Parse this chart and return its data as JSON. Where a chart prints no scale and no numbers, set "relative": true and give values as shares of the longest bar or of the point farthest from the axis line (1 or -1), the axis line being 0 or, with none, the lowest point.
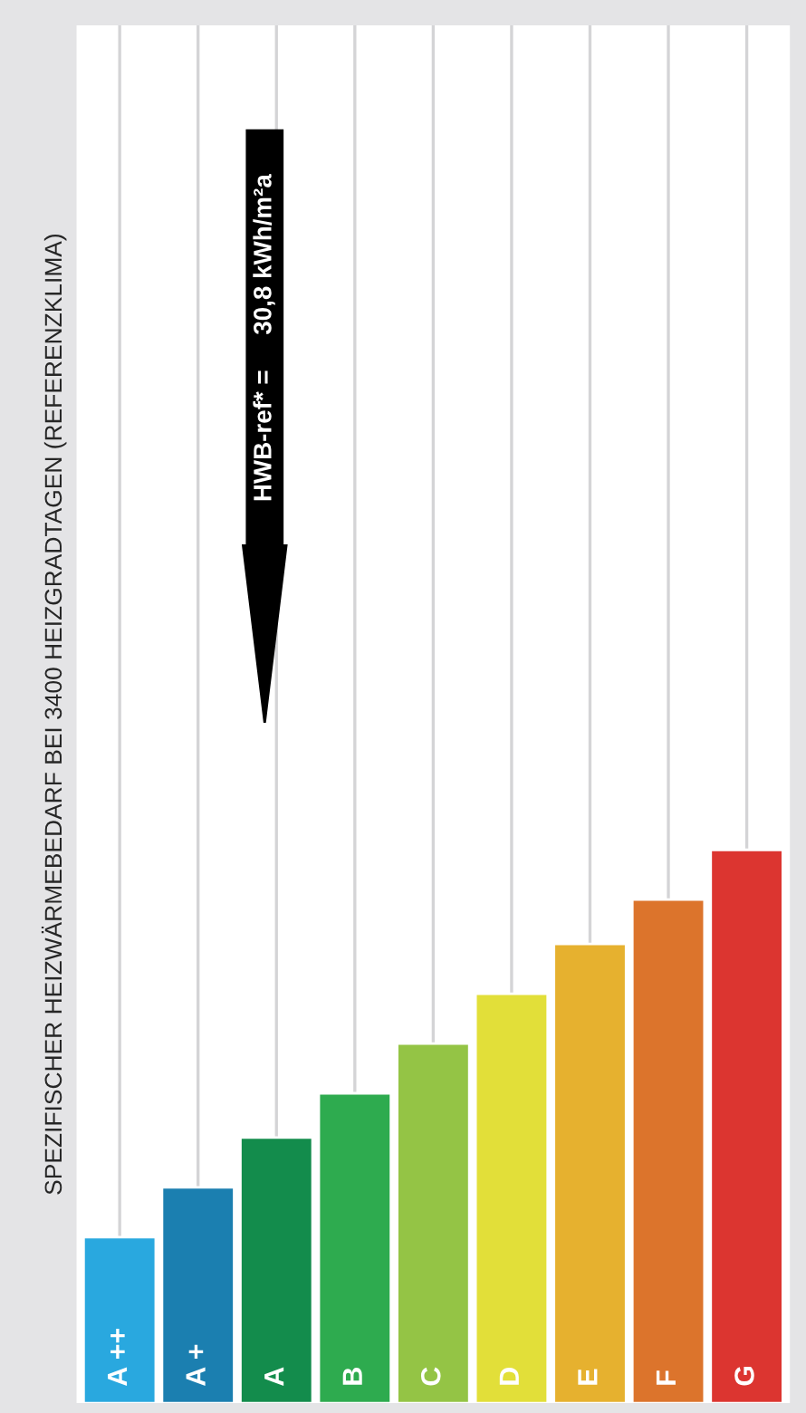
{
  "chart_data": {
    "type": "bar",
    "relative": true,
    "ylabel": "SPEZIFISCHER HEIZWÄRMEBEDARF BEI 3400 HEIZGRADTAGEN (REFERENZKLIMA)",
    "categories": [
      "A ++",
      "A +",
      "A",
      "B",
      "C",
      "D",
      "E",
      "F",
      "G"
    ],
    "values": [
      0.3,
      0.39,
      0.48,
      0.56,
      0.65,
      0.74,
      0.83,
      0.91,
      1
    ],
    "colors": [
      "#29a8df",
      "#1b7fb0",
      "#138c4c",
      "#2eab4f",
      "#94c445",
      "#e2df39",
      "#e6b12f",
      "#dc742c",
      "#dc3530"
    ],
    "annotations": [
      "HWB-ref* =     30,8 kWh/m²a"
    ],
    "grid": "x"
  }
}
